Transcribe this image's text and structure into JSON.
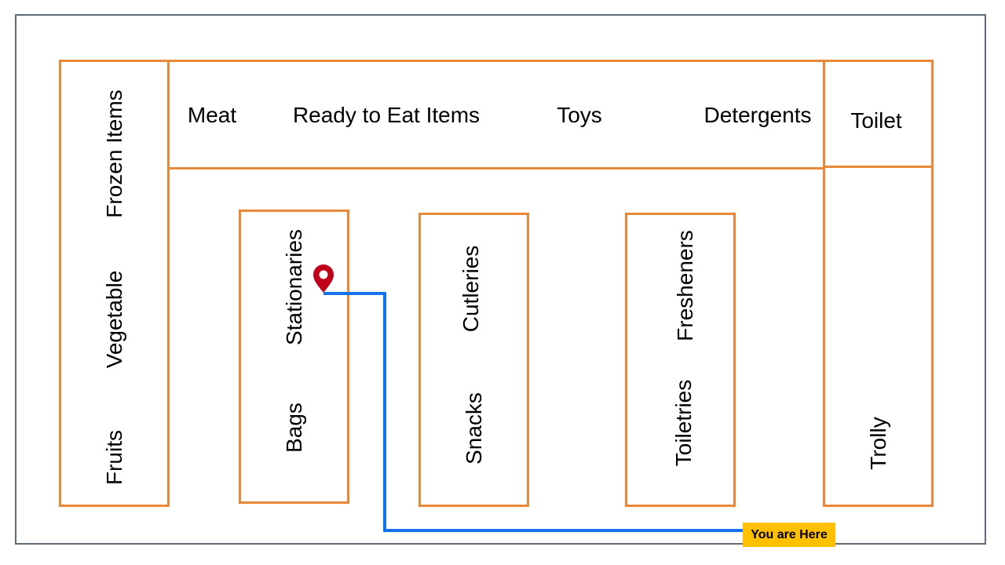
{
  "map": {
    "sections": {
      "frozen_items": "Frozen Items",
      "vegetable": "Vegetable",
      "fruits": "Fruits",
      "meat": "Meat",
      "ready_to_eat": "Ready to Eat Items",
      "toys": "Toys",
      "detergents": "Detergents",
      "toilet": "Toilet",
      "trolly": "Trolly",
      "stationaries": "Stationaries",
      "bags": "Bags",
      "cutleries": "Cutleries",
      "snacks": "Snacks",
      "fresheners": "Fresheners",
      "toiletries": "Toiletries"
    },
    "you_are_here": "You are Here"
  },
  "colors": {
    "box_border": "#e8893a",
    "route": "#1273eb",
    "pin": "#c00018",
    "marker_bg": "#ffc000",
    "frame": "#5f6b76"
  },
  "icons": {
    "pin": "map-pin-icon"
  }
}
